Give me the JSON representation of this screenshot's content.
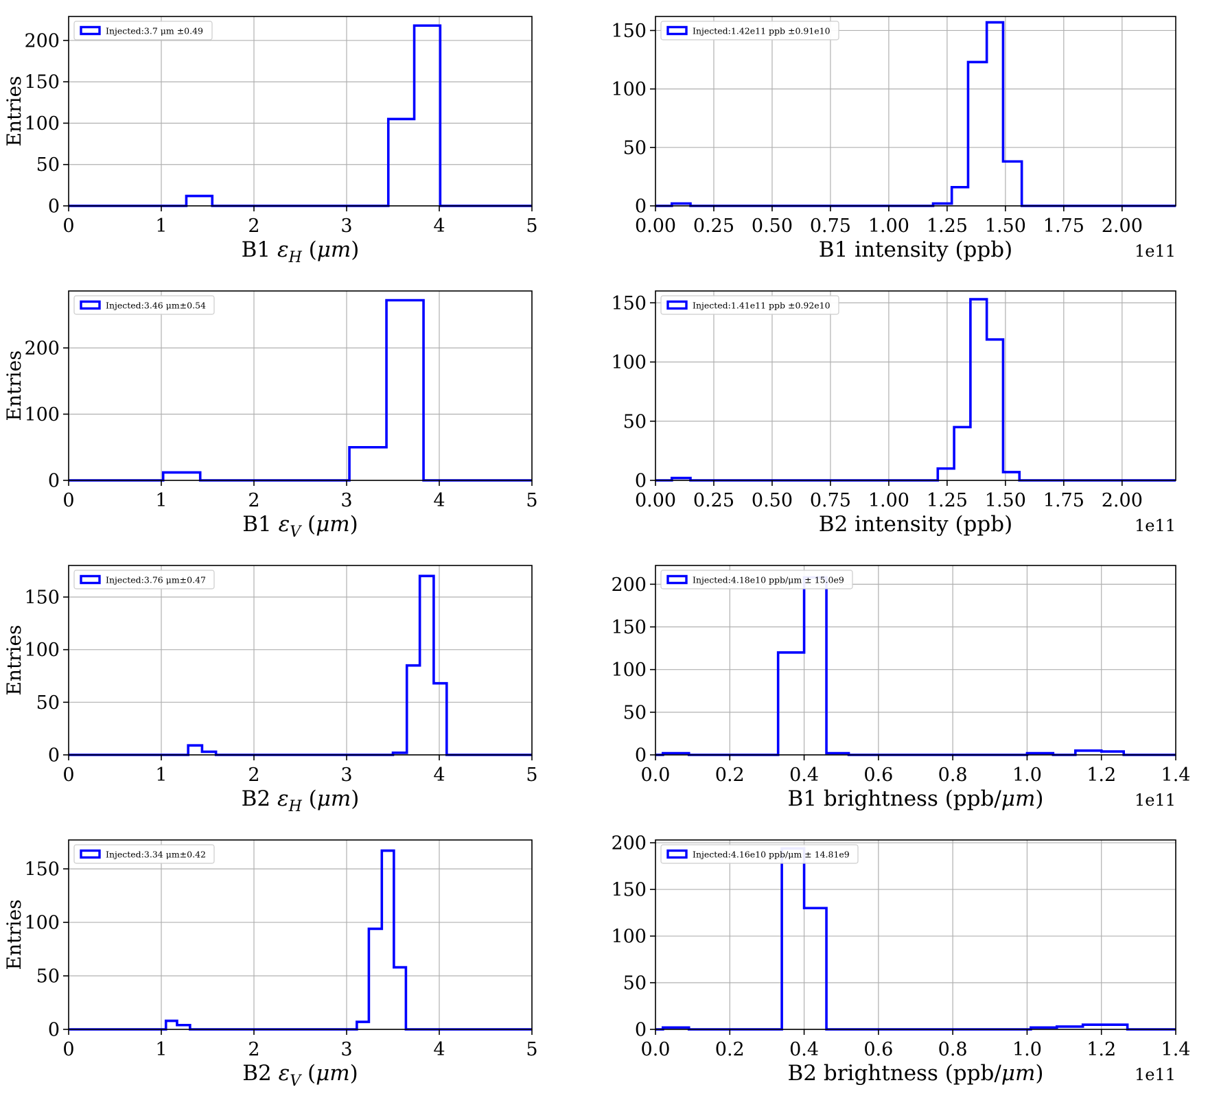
{
  "figure": {
    "background": "#ffffff",
    "histogram_color": "#0000ff",
    "grid_color": "#b0b0b0",
    "spine_color": "#000000",
    "legend_border_color": "#cccccc",
    "entries_label": "Entries"
  },
  "chart_data": [
    {
      "name": "b1-emittance-h",
      "type": "bar",
      "subtype": "step-histogram",
      "column": "left",
      "legend": "Injected:3.7 μm ±0.49",
      "xlabel_text": "B1 εH (μm)",
      "xlabel_parts": [
        {
          "t": "B1 "
        },
        {
          "t": "ε",
          "italic": true
        },
        {
          "t": "H",
          "sub": true,
          "italic": true
        },
        {
          "t": " ("
        },
        {
          "t": "μm",
          "italic": true
        },
        {
          "t": ")"
        }
      ],
      "ylabel": "Entries",
      "xlim": [
        0,
        5
      ],
      "ylim": [
        0,
        229
      ],
      "xticks": [
        0,
        1,
        2,
        3,
        4,
        5
      ],
      "xtick_labels": [
        "0",
        "1",
        "2",
        "3",
        "4",
        "5"
      ],
      "yticks": [
        0,
        50,
        100,
        150,
        200
      ],
      "ytick_labels": [
        "0",
        "50",
        "100",
        "150",
        "200"
      ],
      "x_offset_label": "",
      "grid": true,
      "bins": [
        [
          1.27,
          1.55,
          12
        ],
        [
          3.45,
          3.73,
          105
        ],
        [
          3.73,
          4.01,
          218
        ]
      ]
    },
    {
      "name": "b1-intensity",
      "type": "bar",
      "subtype": "step-histogram",
      "column": "right",
      "legend": "Injected:1.42e11 ppb ±0.91e10",
      "xlabel_text": "B1 intensity (ppb)",
      "xlabel_parts": [
        {
          "t": "B1 intensity (ppb)"
        }
      ],
      "ylabel": "",
      "x_unit_multiplier": "1e11",
      "xlim": [
        0,
        2.23
      ],
      "ylim": [
        0,
        162
      ],
      "xticks": [
        0,
        0.25,
        0.5,
        0.75,
        1.0,
        1.25,
        1.5,
        1.75,
        2.0
      ],
      "xtick_labels": [
        "0.00",
        "0.25",
        "0.50",
        "0.75",
        "1.00",
        "1.25",
        "1.50",
        "1.75",
        "2.00"
      ],
      "yticks": [
        0,
        50,
        100,
        150
      ],
      "ytick_labels": [
        "0",
        "50",
        "100",
        "150"
      ],
      "x_offset_label": "1e11",
      "grid": true,
      "bins": [
        [
          0.07,
          0.15,
          2
        ],
        [
          1.19,
          1.27,
          2
        ],
        [
          1.27,
          1.34,
          16
        ],
        [
          1.34,
          1.42,
          123
        ],
        [
          1.42,
          1.49,
          157
        ],
        [
          1.49,
          1.57,
          38
        ]
      ]
    },
    {
      "name": "b1-emittance-v",
      "type": "bar",
      "subtype": "step-histogram",
      "column": "left",
      "legend": "Injected:3.46 μm±0.54",
      "xlabel_text": "B1 εV (μm)",
      "xlabel_parts": [
        {
          "t": "B1 "
        },
        {
          "t": "ε",
          "italic": true
        },
        {
          "t": "V",
          "sub": true,
          "italic": true
        },
        {
          "t": " ("
        },
        {
          "t": "μm",
          "italic": true
        },
        {
          "t": ")"
        }
      ],
      "ylabel": "Entries",
      "xlim": [
        0,
        5
      ],
      "ylim": [
        0,
        286
      ],
      "xticks": [
        0,
        1,
        2,
        3,
        4,
        5
      ],
      "xtick_labels": [
        "0",
        "1",
        "2",
        "3",
        "4",
        "5"
      ],
      "yticks": [
        0,
        100,
        200
      ],
      "ytick_labels": [
        "0",
        "100",
        "200"
      ],
      "x_offset_label": "",
      "grid": true,
      "bins": [
        [
          1.02,
          1.42,
          12
        ],
        [
          3.03,
          3.43,
          50
        ],
        [
          3.43,
          3.83,
          272
        ]
      ]
    },
    {
      "name": "b2-intensity",
      "type": "bar",
      "subtype": "step-histogram",
      "column": "right",
      "legend": "Injected:1.41e11 ppb ±0.92e10",
      "xlabel_text": "B2 intensity (ppb)",
      "xlabel_parts": [
        {
          "t": "B2 intensity (ppb)"
        }
      ],
      "ylabel": "",
      "x_unit_multiplier": "1e11",
      "xlim": [
        0,
        2.23
      ],
      "ylim": [
        0,
        160
      ],
      "xticks": [
        0,
        0.25,
        0.5,
        0.75,
        1.0,
        1.25,
        1.5,
        1.75,
        2.0
      ],
      "xtick_labels": [
        "0.00",
        "0.25",
        "0.50",
        "0.75",
        "1.00",
        "1.25",
        "1.50",
        "1.75",
        "2.00"
      ],
      "yticks": [
        0,
        50,
        100,
        150
      ],
      "ytick_labels": [
        "0",
        "50",
        "100",
        "150"
      ],
      "x_offset_label": "1e11",
      "grid": true,
      "bins": [
        [
          0.07,
          0.15,
          2
        ],
        [
          1.21,
          1.28,
          10
        ],
        [
          1.28,
          1.35,
          45
        ],
        [
          1.35,
          1.42,
          153
        ],
        [
          1.42,
          1.49,
          119
        ],
        [
          1.49,
          1.56,
          7
        ]
      ]
    },
    {
      "name": "b2-emittance-h",
      "type": "bar",
      "subtype": "step-histogram",
      "column": "left",
      "legend": "Injected:3.76 μm±0.47",
      "xlabel_text": "B2 εH (μm)",
      "xlabel_parts": [
        {
          "t": "B2 "
        },
        {
          "t": "ε",
          "italic": true
        },
        {
          "t": "H",
          "sub": true,
          "italic": true
        },
        {
          "t": " ("
        },
        {
          "t": "μm",
          "italic": true
        },
        {
          "t": ")"
        }
      ],
      "ylabel": "Entries",
      "xlim": [
        0,
        5
      ],
      "ylim": [
        0,
        180
      ],
      "xticks": [
        0,
        1,
        2,
        3,
        4,
        5
      ],
      "xtick_labels": [
        "0",
        "1",
        "2",
        "3",
        "4",
        "5"
      ],
      "yticks": [
        0,
        50,
        100,
        150
      ],
      "ytick_labels": [
        "0",
        "50",
        "100",
        "150"
      ],
      "x_offset_label": "",
      "grid": true,
      "bins": [
        [
          1.29,
          1.44,
          9
        ],
        [
          1.44,
          1.59,
          3
        ],
        [
          3.5,
          3.65,
          2
        ],
        [
          3.65,
          3.79,
          85
        ],
        [
          3.79,
          3.94,
          170
        ],
        [
          3.94,
          4.08,
          68
        ]
      ]
    },
    {
      "name": "b1-brightness",
      "type": "bar",
      "subtype": "step-histogram",
      "column": "right",
      "legend": "Injected:4.18e10 ppb/μm ± 15.0e9",
      "xlabel_text": "B1 brightness (ppb/μm)",
      "xlabel_parts": [
        {
          "t": "B1 brightness (ppb/"
        },
        {
          "t": "μm",
          "italic": true
        },
        {
          "t": ")"
        }
      ],
      "ylabel": "",
      "x_unit_multiplier": "1e11",
      "xlim": [
        0,
        1.4
      ],
      "ylim": [
        0,
        222
      ],
      "xticks": [
        0,
        0.2,
        0.4,
        0.6,
        0.8,
        1.0,
        1.2,
        1.4
      ],
      "xtick_labels": [
        "0.0",
        "0.2",
        "0.4",
        "0.6",
        "0.8",
        "1.0",
        "1.2",
        "1.4"
      ],
      "yticks": [
        0,
        50,
        100,
        150,
        200
      ],
      "ytick_labels": [
        "0",
        "50",
        "100",
        "150",
        "200"
      ],
      "x_offset_label": "1e11",
      "grid": true,
      "bins": [
        [
          0.02,
          0.09,
          2
        ],
        [
          0.33,
          0.4,
          120
        ],
        [
          0.4,
          0.46,
          208
        ],
        [
          0.46,
          0.52,
          2
        ],
        [
          1.0,
          1.07,
          2
        ],
        [
          1.13,
          1.2,
          5
        ],
        [
          1.2,
          1.26,
          4
        ]
      ]
    },
    {
      "name": "b2-emittance-v",
      "type": "bar",
      "subtype": "step-histogram",
      "column": "left",
      "legend": "Injected:3.34 μm±0.42",
      "xlabel_text": "B2 εV (μm)",
      "xlabel_parts": [
        {
          "t": "B2 "
        },
        {
          "t": "ε",
          "italic": true
        },
        {
          "t": "V",
          "sub": true,
          "italic": true
        },
        {
          "t": " ("
        },
        {
          "t": "μm",
          "italic": true
        },
        {
          "t": ")"
        }
      ],
      "ylabel": "Entries",
      "xlim": [
        0,
        5
      ],
      "ylim": [
        0,
        177
      ],
      "xticks": [
        0,
        1,
        2,
        3,
        4,
        5
      ],
      "xtick_labels": [
        "0",
        "1",
        "2",
        "3",
        "4",
        "5"
      ],
      "yticks": [
        0,
        50,
        100,
        150
      ],
      "ytick_labels": [
        "0",
        "50",
        "100",
        "150"
      ],
      "x_offset_label": "",
      "grid": true,
      "bins": [
        [
          1.05,
          1.17,
          8
        ],
        [
          1.17,
          1.31,
          4
        ],
        [
          3.11,
          3.24,
          7
        ],
        [
          3.24,
          3.38,
          94
        ],
        [
          3.38,
          3.51,
          167
        ],
        [
          3.51,
          3.64,
          58
        ]
      ]
    },
    {
      "name": "b2-brightness",
      "type": "bar",
      "subtype": "step-histogram",
      "column": "right",
      "legend": "Injected:4.16e10 ppb/μm ± 14.81e9",
      "xlabel_text": "B2 brightness (ppb/μm)",
      "xlabel_parts": [
        {
          "t": "B2 brightness (ppb/"
        },
        {
          "t": "μm",
          "italic": true
        },
        {
          "t": ")"
        }
      ],
      "ylabel": "",
      "x_unit_multiplier": "1e11",
      "xlim": [
        0,
        1.4
      ],
      "ylim": [
        0,
        203
      ],
      "xticks": [
        0,
        0.2,
        0.4,
        0.6,
        0.8,
        1.0,
        1.2,
        1.4
      ],
      "xtick_labels": [
        "0.0",
        "0.2",
        "0.4",
        "0.6",
        "0.8",
        "1.0",
        "1.2",
        "1.4"
      ],
      "yticks": [
        0,
        50,
        100,
        150,
        200
      ],
      "ytick_labels": [
        "0",
        "50",
        "100",
        "150",
        "200"
      ],
      "x_offset_label": "1e11",
      "grid": true,
      "bins": [
        [
          0.02,
          0.09,
          2
        ],
        [
          0.34,
          0.4,
          194
        ],
        [
          0.4,
          0.46,
          130
        ],
        [
          1.01,
          1.08,
          2
        ],
        [
          1.08,
          1.15,
          3
        ],
        [
          1.15,
          1.27,
          5
        ]
      ]
    }
  ]
}
